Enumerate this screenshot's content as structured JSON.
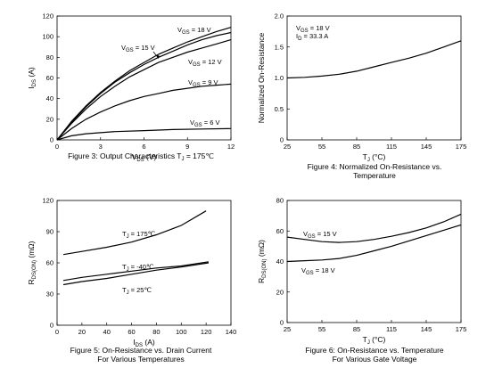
{
  "chart_data": [
    {
      "type": "line",
      "xlabel": {
        "main": "V",
        "sub": "DS",
        "unit": " (V)"
      },
      "ylabel": {
        "main": "I",
        "sub": "DS",
        "unit": " (A)"
      },
      "xlim": [
        0,
        12
      ],
      "ylim": [
        0,
        120
      ],
      "xticks": [
        0,
        3,
        6,
        9,
        12
      ],
      "yticks": [
        0,
        20,
        40,
        60,
        80,
        100,
        120
      ],
      "caption": [
        "Figure 3: Output Characteristics T",
        "J",
        " = 175℃"
      ],
      "series": [
        {
          "label": "V_GS = 18 V",
          "x": [
            0,
            1,
            2,
            3,
            4,
            5,
            6,
            7,
            8,
            9,
            10,
            11,
            12
          ],
          "y": [
            0,
            18,
            33,
            46,
            57,
            67,
            75,
            83,
            89,
            95,
            100,
            105,
            109
          ]
        },
        {
          "label": "V_GS = 15 V",
          "x": [
            0,
            1,
            2,
            3,
            4,
            5,
            6,
            7,
            8,
            9,
            10,
            11,
            12
          ],
          "y": [
            0,
            17,
            32,
            45,
            56,
            65,
            73,
            80,
            86,
            92,
            97,
            101,
            104
          ]
        },
        {
          "label": "V_GS = 12 V",
          "x": [
            0,
            1,
            2,
            3,
            4,
            5,
            6,
            7,
            8,
            9,
            10,
            11,
            12
          ],
          "y": [
            0,
            16,
            30,
            42,
            52,
            61,
            68,
            75,
            80,
            85,
            89,
            93,
            97
          ]
        },
        {
          "label": "V_GS = 9 V",
          "x": [
            0,
            1,
            2,
            3,
            4,
            5,
            6,
            7,
            8,
            9,
            10,
            11,
            12
          ],
          "y": [
            0,
            11,
            20,
            27,
            33,
            38,
            42,
            45,
            48,
            50,
            52,
            53,
            54
          ]
        },
        {
          "label": "V_GS = 6 V",
          "x": [
            0,
            1,
            2,
            3,
            4,
            6,
            8,
            10,
            12
          ],
          "y": [
            0,
            4,
            6,
            7,
            8,
            9,
            10,
            10.5,
            11
          ]
        }
      ],
      "labels": [
        {
          "main": "V",
          "sub": "GS",
          "rest": " = 18 V"
        },
        {
          "main": "V",
          "sub": "GS",
          "rest": " = 15 V"
        },
        {
          "main": "V",
          "sub": "GS",
          "rest": " = 12 V"
        },
        {
          "main": "V",
          "sub": "GS",
          "rest": " = 9 V"
        },
        {
          "main": "V",
          "sub": "GS",
          "rest": " = 6 V"
        }
      ]
    },
    {
      "type": "line",
      "xlabel": {
        "main": "T",
        "sub": "J",
        "unit": " (°C)"
      },
      "ylabel": {
        "main": "Normalized On-Resistance",
        "sub": "",
        "unit": ""
      },
      "xlim": [
        25,
        175
      ],
      "ylim": [
        0,
        2.0
      ],
      "xticks": [
        25,
        55,
        85,
        115,
        145,
        175
      ],
      "yticks": [
        0,
        0.5,
        1.0,
        1.5,
        2.0
      ],
      "ytick_labels": [
        "0",
        "0.5",
        "1.0",
        "1.5",
        "2.0"
      ],
      "caption_lines": [
        "Figure 4: Normalized On-Resistance vs.",
        "Temperature"
      ],
      "series": [
        {
          "x": [
            25,
            40,
            55,
            70,
            85,
            100,
            115,
            130,
            145,
            160,
            175
          ],
          "y": [
            1.0,
            1.01,
            1.03,
            1.06,
            1.11,
            1.18,
            1.25,
            1.32,
            1.4,
            1.5,
            1.6
          ]
        }
      ],
      "legend": [
        {
          "main": "V",
          "sub": "GS",
          "rest": " = 18 V"
        },
        {
          "main": "I",
          "sub": "D",
          "rest": " = 33.3 A"
        }
      ]
    },
    {
      "type": "line",
      "xlabel": {
        "main": "I",
        "sub": "DS",
        "unit": " (A)"
      },
      "ylabel": {
        "main": "R",
        "sub": "DS(ON)",
        "unit": " (mΩ)"
      },
      "xlim": [
        0,
        140
      ],
      "ylim": [
        0,
        120
      ],
      "xticks": [
        0,
        20,
        40,
        60,
        80,
        100,
        120,
        140
      ],
      "yticks": [
        0,
        30,
        60,
        90,
        120
      ],
      "caption_lines": [
        "Figure 5: On-Resistance vs. Drain Current",
        "For Various Temperatures"
      ],
      "series": [
        {
          "label": "T_J = 175℃",
          "x": [
            5,
            20,
            40,
            60,
            80,
            100,
            120
          ],
          "y": [
            68,
            71,
            75,
            80,
            87,
            96,
            110
          ]
        },
        {
          "label": "T_J = -40℃",
          "x": [
            5,
            20,
            40,
            60,
            80,
            100,
            122
          ],
          "y": [
            43,
            46,
            49,
            52,
            55,
            57,
            61
          ]
        },
        {
          "label": "T_J = 25℃",
          "x": [
            5,
            20,
            40,
            60,
            80,
            100,
            122
          ],
          "y": [
            39,
            42,
            45,
            49,
            53,
            56,
            60
          ]
        }
      ],
      "labels": [
        {
          "main": "T",
          "sub": "J",
          "rest": " = 175℃"
        },
        {
          "main": "T",
          "sub": "J",
          "rest": " = -40℃"
        },
        {
          "main": "T",
          "sub": "J",
          "rest": " = 25℃"
        }
      ]
    },
    {
      "type": "line",
      "xlabel": {
        "main": "T",
        "sub": "J",
        "unit": " (°C)"
      },
      "ylabel": {
        "main": "R",
        "sub": "DS(ON)",
        "unit": " (mΩ)"
      },
      "xlim": [
        25,
        175
      ],
      "ylim": [
        0,
        80
      ],
      "xticks": [
        25,
        55,
        85,
        115,
        145,
        175
      ],
      "yticks": [
        0,
        20,
        40,
        60,
        80
      ],
      "caption_lines": [
        "Figure 6: On-Resistance vs. Temperature",
        "For Various Gate Voltage"
      ],
      "series": [
        {
          "label": "V_GS = 15 V",
          "x": [
            25,
            40,
            55,
            70,
            85,
            100,
            115,
            130,
            145,
            160,
            175
          ],
          "y": [
            56,
            54.5,
            53,
            52.5,
            53,
            54.5,
            56.5,
            59,
            62,
            66,
            71
          ]
        },
        {
          "label": "V_GS = 18 V",
          "x": [
            25,
            40,
            55,
            70,
            85,
            100,
            115,
            130,
            145,
            160,
            175
          ],
          "y": [
            40,
            40.5,
            41,
            42,
            44,
            47,
            50,
            53.5,
            57,
            60.5,
            64
          ]
        }
      ],
      "labels": [
        {
          "main": "V",
          "sub": "GS",
          "rest": " = 15 V"
        },
        {
          "main": "V",
          "sub": "GS",
          "rest": " = 18 V"
        }
      ]
    }
  ]
}
